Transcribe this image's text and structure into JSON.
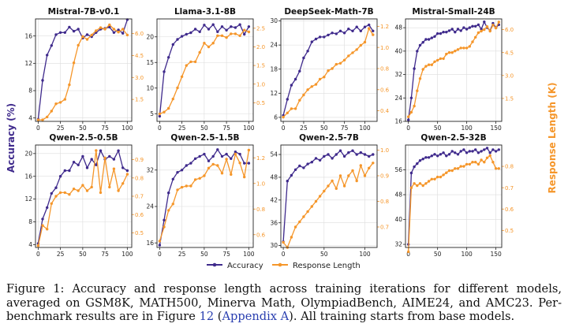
{
  "colors": {
    "accuracy": "#3f2a8c",
    "length": "#f5962a",
    "grid": "#dddddd"
  },
  "figure": {
    "y_left_label": "Accuracy (%)",
    "y_right_label": "Response Length (K)",
    "legend": [
      "Accuracy",
      "Response Length"
    ]
  },
  "caption": {
    "text_a": "Figure 1: Accuracy and response length across training iterations for different models, averaged on GSM8K, MATH500, Minerva Math, OlympiadBench, AIME24, and AMC23. Per-benchmark results are in Figure ",
    "ref_fig": "12",
    "text_b": " (",
    "ref_app": "Appendix A",
    "text_c": "). All training starts from base models."
  },
  "chart_data": [
    {
      "type": "line",
      "title": "Mistral-7B-v0.1",
      "x": [
        0,
        5,
        10,
        15,
        20,
        25,
        30,
        35,
        40,
        45,
        50,
        55,
        60,
        65,
        70,
        75,
        80,
        85,
        90,
        95,
        100
      ],
      "series": [
        {
          "name": "Accuracy",
          "axis": "left",
          "values": [
            3.8,
            9.5,
            13.2,
            14.6,
            16.2,
            16.5,
            16.5,
            17.3,
            16.7,
            17.0,
            15.7,
            16.2,
            15.9,
            16.5,
            17.0,
            17.1,
            17.3,
            16.5,
            16.9,
            16.4,
            18.4
          ]
        },
        {
          "name": "Response Length",
          "axis": "right",
          "values": [
            0.1,
            0.1,
            0.3,
            0.7,
            1.2,
            1.3,
            1.5,
            2.5,
            4.0,
            5.2,
            5.8,
            5.6,
            5.9,
            6.2,
            6.4,
            6.3,
            6.6,
            6.3,
            6.1,
            6.3,
            5.9
          ]
        }
      ],
      "ylim_left": [
        3.5,
        18.5
      ],
      "yticks_left": [
        4,
        8,
        12,
        16
      ],
      "ylim_right": [
        0,
        7.0
      ],
      "yticks_right": [
        1.5,
        3.0,
        4.5,
        6.0
      ],
      "right_decimals": 1,
      "xlim": [
        -3,
        105
      ],
      "xticks": [
        0,
        25,
        50,
        75,
        100
      ]
    },
    {
      "type": "line",
      "title": "Llama-3.1-8B",
      "x": [
        0,
        5,
        10,
        15,
        20,
        25,
        30,
        35,
        40,
        45,
        50,
        55,
        60,
        65,
        70,
        75,
        80,
        85,
        90,
        95,
        100
      ],
      "series": [
        {
          "name": "Accuracy",
          "axis": "left",
          "values": [
            4.5,
            13.2,
            16.0,
            18.5,
            19.5,
            20.1,
            20.5,
            20.8,
            21.5,
            21.0,
            22.3,
            21.5,
            22.4,
            21.0,
            22.0,
            21.3,
            22.0,
            21.8,
            22.4,
            20.5,
            22.0
          ]
        },
        {
          "name": "Response Length",
          "axis": "right",
          "values": [
            0.2,
            0.25,
            0.35,
            0.6,
            0.9,
            1.2,
            1.5,
            1.6,
            1.6,
            1.85,
            2.1,
            2.0,
            2.1,
            2.3,
            2.3,
            2.25,
            2.35,
            2.35,
            2.3,
            2.45,
            2.4
          ]
        }
      ],
      "ylim_left": [
        3.5,
        23.5
      ],
      "yticks_left": [
        5,
        10,
        15,
        20
      ],
      "ylim_right": [
        0,
        2.75
      ],
      "yticks_right": [
        0.5,
        1.0,
        1.5,
        2.0,
        2.5
      ],
      "right_decimals": 1,
      "xlim": [
        -3,
        105
      ],
      "xticks": [
        0,
        25,
        50,
        75,
        100
      ]
    },
    {
      "type": "line",
      "title": "DeepSeek-Math-7B",
      "x": [
        0,
        5,
        10,
        15,
        20,
        25,
        30,
        35,
        40,
        45,
        50,
        55,
        60,
        65,
        70,
        75,
        80,
        85,
        90,
        95,
        100,
        105,
        110
      ],
      "series": [
        {
          "name": "Accuracy",
          "axis": "left",
          "values": [
            6.5,
            10.5,
            14.0,
            15.5,
            17.5,
            20.8,
            22.5,
            24.8,
            25.5,
            26.0,
            26.0,
            26.5,
            27.0,
            26.8,
            27.5,
            27.0,
            28.0,
            27.5,
            28.5,
            27.5,
            28.5,
            29.0,
            27.5
          ]
        },
        {
          "name": "Response Length",
          "axis": "right",
          "values": [
            0.34,
            0.38,
            0.42,
            0.42,
            0.5,
            0.55,
            0.6,
            0.63,
            0.65,
            0.7,
            0.72,
            0.78,
            0.8,
            0.84,
            0.85,
            0.88,
            0.92,
            0.95,
            0.98,
            1.02,
            1.05,
            1.18,
            1.12
          ]
        }
      ],
      "ylim_left": [
        5,
        30.5
      ],
      "yticks_left": [
        6,
        12,
        18,
        24,
        30
      ],
      "ylim_right": [
        0.3,
        1.27
      ],
      "yticks_right": [
        0.4,
        0.6,
        0.8,
        1.0,
        1.2
      ],
      "right_decimals": 1,
      "xlim": [
        -3,
        115
      ],
      "xticks": [
        0,
        25,
        50,
        75,
        100
      ]
    },
    {
      "type": "line",
      "title": "Mistral-Small-24B",
      "x": [
        0,
        5,
        10,
        15,
        20,
        25,
        30,
        35,
        40,
        45,
        50,
        55,
        60,
        65,
        70,
        75,
        80,
        85,
        90,
        95,
        100,
        105,
        110,
        115,
        120,
        125,
        130,
        135,
        140,
        145,
        150,
        155
      ],
      "series": [
        {
          "name": "Accuracy",
          "axis": "left",
          "values": [
            16.5,
            24.0,
            34.0,
            40.0,
            42.0,
            43.0,
            44.0,
            44.0,
            44.5,
            45.0,
            46.0,
            46.0,
            46.5,
            46.5,
            47.0,
            47.5,
            46.5,
            47.5,
            47.0,
            48.0,
            47.5,
            48.0,
            48.5,
            48.5,
            49.0,
            47.5,
            50.0,
            48.0,
            47.0,
            49.5,
            48.0,
            49.0
          ]
        },
        {
          "name": "Response Length",
          "axis": "right",
          "values": [
            0.3,
            0.6,
            1.0,
            2.0,
            2.8,
            3.4,
            3.6,
            3.7,
            3.7,
            3.9,
            4.0,
            4.1,
            4.1,
            4.4,
            4.5,
            4.5,
            4.6,
            4.7,
            4.8,
            4.8,
            4.8,
            4.9,
            5.2,
            5.5,
            5.8,
            5.9,
            6.0,
            6.2,
            5.9,
            6.3,
            6.1,
            6.5
          ]
        }
      ],
      "ylim_left": [
        16,
        51
      ],
      "yticks_left": [
        16,
        24,
        32,
        40,
        48
      ],
      "ylim_right": [
        0,
        6.7
      ],
      "yticks_right": [
        1.5,
        3.0,
        4.5,
        6.0
      ],
      "right_decimals": 1,
      "xlim": [
        -5,
        160
      ],
      "xticks": [
        0,
        50,
        100,
        150
      ]
    },
    {
      "type": "line",
      "title": "Qwen-2.5-0.5B",
      "x": [
        0,
        5,
        10,
        15,
        20,
        25,
        30,
        35,
        40,
        45,
        50,
        55,
        60,
        65,
        70,
        75,
        80,
        85,
        90,
        95,
        100
      ],
      "series": [
        {
          "name": "Accuracy",
          "axis": "left",
          "values": [
            4.2,
            8.5,
            10.5,
            13.0,
            14.0,
            16.0,
            17.0,
            17.0,
            18.5,
            18.0,
            19.5,
            17.5,
            19.0,
            18.0,
            20.5,
            19.0,
            19.5,
            19.0,
            20.5,
            17.5,
            17.0
          ]
        },
        {
          "name": "Response Length",
          "axis": "right",
          "values": [
            0.43,
            0.54,
            0.52,
            0.66,
            0.7,
            0.72,
            0.72,
            0.71,
            0.74,
            0.73,
            0.76,
            0.73,
            0.75,
            0.95,
            0.72,
            0.91,
            0.75,
            0.85,
            0.73,
            0.77,
            0.82
          ]
        }
      ],
      "ylim_left": [
        3.5,
        21.5
      ],
      "yticks_left": [
        4,
        8,
        12,
        16,
        20
      ],
      "ylim_right": [
        0.42,
        0.98
      ],
      "yticks_right": [
        0.5,
        0.6,
        0.7,
        0.8,
        0.9
      ],
      "right_decimals": 1,
      "xlim": [
        -3,
        105
      ],
      "xticks": [
        0,
        25,
        50,
        75,
        100
      ]
    },
    {
      "type": "line",
      "title": "Qwen-2.5-1.5B",
      "x": [
        0,
        5,
        10,
        15,
        20,
        25,
        30,
        35,
        40,
        45,
        50,
        55,
        60,
        65,
        70,
        75,
        80,
        85,
        90,
        95,
        100
      ],
      "series": [
        {
          "name": "Accuracy",
          "axis": "left",
          "values": [
            15.5,
            21.0,
            27.0,
            30.0,
            31.5,
            32.0,
            33.0,
            33.5,
            34.5,
            35.0,
            35.5,
            34.0,
            35.0,
            36.5,
            35.0,
            35.5,
            34.5,
            36.0,
            35.5,
            33.5,
            33.5
          ]
        },
        {
          "name": "Response Length",
          "axis": "right",
          "values": [
            0.55,
            0.66,
            0.79,
            0.84,
            0.95,
            0.97,
            0.98,
            0.98,
            1.03,
            1.04,
            1.06,
            1.12,
            1.15,
            1.14,
            1.08,
            1.19,
            1.07,
            1.23,
            1.16,
            1.05,
            1.26
          ]
        }
      ],
      "ylim_left": [
        15,
        37.5
      ],
      "yticks_left": [
        16,
        24,
        32
      ],
      "ylim_right": [
        0.5,
        1.3
      ],
      "yticks_right": [
        0.6,
        0.8,
        1.0,
        1.2
      ],
      "right_decimals": 1,
      "xlim": [
        -3,
        105
      ],
      "xticks": [
        0,
        25,
        50,
        75,
        100
      ]
    },
    {
      "type": "line",
      "title": "Qwen-2.5-7B",
      "x": [
        0,
        5,
        10,
        15,
        20,
        25,
        30,
        35,
        40,
        45,
        50,
        55,
        60,
        65,
        70,
        75,
        80,
        85,
        90,
        95,
        100,
        105,
        110
      ],
      "series": [
        {
          "name": "Accuracy",
          "axis": "left",
          "values": [
            31.0,
            47.0,
            48.5,
            50.0,
            51.0,
            50.5,
            51.5,
            52.0,
            53.0,
            52.5,
            53.5,
            54.0,
            53.0,
            54.0,
            55.0,
            53.5,
            54.5,
            55.0,
            54.0,
            54.5,
            54.0,
            53.5,
            54.0
          ]
        },
        {
          "name": "Response Length",
          "axis": "right",
          "values": [
            0.64,
            0.62,
            0.66,
            0.7,
            0.72,
            0.74,
            0.76,
            0.78,
            0.8,
            0.82,
            0.84,
            0.86,
            0.88,
            0.85,
            0.9,
            0.86,
            0.9,
            0.92,
            0.88,
            0.94,
            0.9,
            0.93,
            0.95
          ]
        }
      ],
      "ylim_left": [
        29.5,
        56.5
      ],
      "yticks_left": [
        30,
        36,
        42,
        48,
        54
      ],
      "ylim_right": [
        0.62,
        1.02
      ],
      "yticks_right": [
        0.7,
        0.8,
        0.9,
        1.0
      ],
      "right_decimals": 1,
      "xlim": [
        -3,
        115
      ],
      "xticks": [
        0,
        50,
        100
      ]
    },
    {
      "type": "line",
      "title": "Qwen-2.5-32B",
      "x": [
        0,
        5,
        10,
        15,
        20,
        25,
        30,
        35,
        40,
        45,
        50,
        55,
        60,
        65,
        70,
        75,
        80,
        85,
        90,
        95,
        100,
        105,
        110,
        115,
        120,
        125,
        130,
        135,
        140,
        145,
        150,
        155
      ],
      "series": [
        {
          "name": "Accuracy",
          "axis": "left",
          "values": [
            32.0,
            55.0,
            57.0,
            58.0,
            59.0,
            59.5,
            60.0,
            60.0,
            60.5,
            61.0,
            60.5,
            61.0,
            61.5,
            60.5,
            61.0,
            62.0,
            61.5,
            61.0,
            62.0,
            62.5,
            61.5,
            62.0,
            62.0,
            62.5,
            61.5,
            62.0,
            62.5,
            63.0,
            61.5,
            62.5,
            62.0,
            62.5
          ]
        },
        {
          "name": "Response Length",
          "axis": "right",
          "values": [
            0.4,
            0.7,
            0.72,
            0.71,
            0.72,
            0.71,
            0.72,
            0.73,
            0.74,
            0.74,
            0.75,
            0.75,
            0.76,
            0.77,
            0.78,
            0.78,
            0.79,
            0.79,
            0.8,
            0.8,
            0.81,
            0.81,
            0.82,
            0.82,
            0.81,
            0.83,
            0.82,
            0.84,
            0.85,
            0.82,
            0.79,
            0.79
          ]
        }
      ],
      "ylim_left": [
        31,
        64
      ],
      "yticks_left": [
        32,
        40,
        48,
        56
      ],
      "ylim_right": [
        0.42,
        0.9
      ],
      "yticks_right": [
        0.5,
        0.6,
        0.7,
        0.8
      ],
      "right_decimals": 1,
      "xlim": [
        -5,
        160
      ],
      "xticks": [
        0,
        50,
        100,
        150
      ]
    }
  ]
}
